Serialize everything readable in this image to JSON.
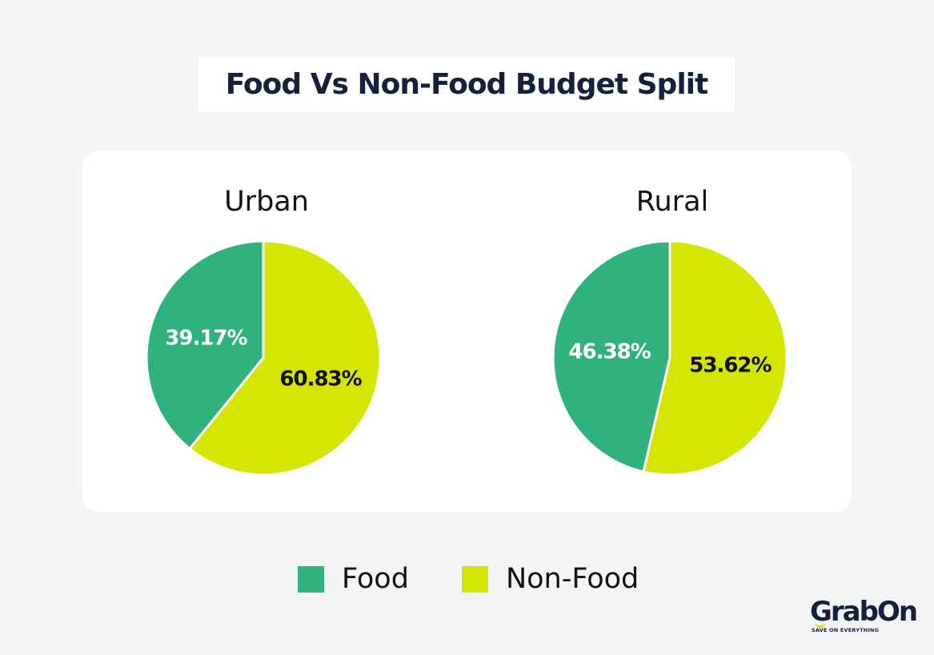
{
  "header": {
    "title": "Food Vs Non-Food Budget Split"
  },
  "chart_data": [
    {
      "type": "pie",
      "title": "Urban",
      "categories": [
        "Food",
        "Non-Food"
      ],
      "values": [
        39.17,
        60.83
      ],
      "labels": [
        "39.17%",
        "60.83%"
      ],
      "colors": [
        "#2fb27d",
        "#d4e600"
      ],
      "label_colors": [
        "#ffffff",
        "#111111"
      ]
    },
    {
      "type": "pie",
      "title": "Rural",
      "categories": [
        "Food",
        "Non-Food"
      ],
      "values": [
        46.38,
        53.62
      ],
      "labels": [
        "46.38%",
        "53.62%"
      ],
      "colors": [
        "#2fb27d",
        "#d4e600"
      ],
      "label_colors": [
        "#ffffff",
        "#111111"
      ]
    }
  ],
  "legend": {
    "items": [
      {
        "label": "Food",
        "color": "#2fb27d"
      },
      {
        "label": "Non-Food",
        "color": "#d4e600"
      }
    ]
  },
  "brand": {
    "name": "GrabOn",
    "tagline": "SAVE ON EVERYTHING",
    "accent": "#d4e600"
  }
}
